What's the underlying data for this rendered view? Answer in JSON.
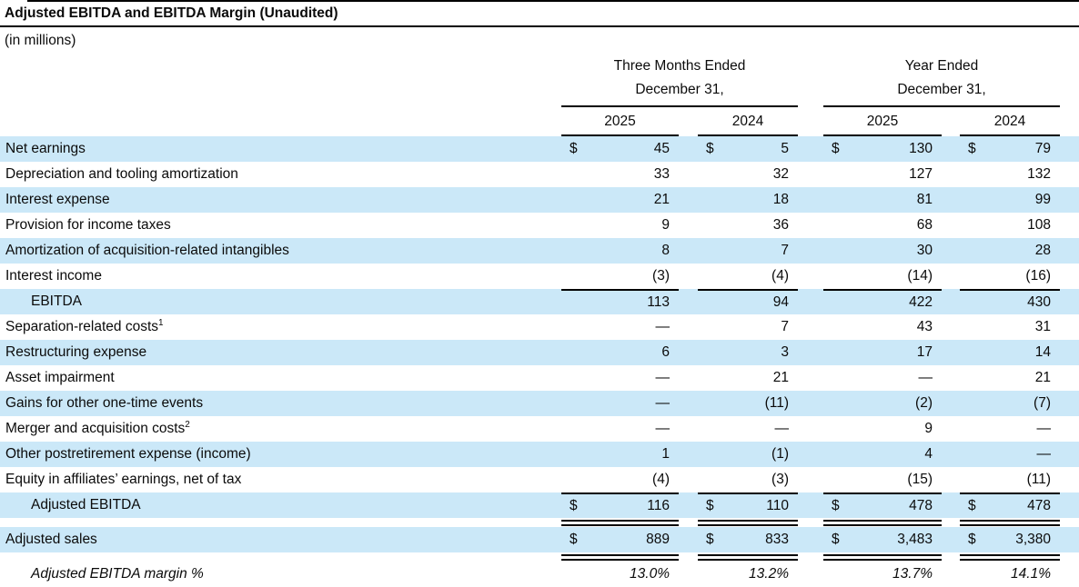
{
  "title": "Adjusted EBITDA and EBITDA Margin (Unaudited)",
  "subtitle": "(in millions)",
  "colors": {
    "stripe": "#cbe8f8",
    "rule": "#000000",
    "text": "#0b0b0b"
  },
  "table": {
    "currency_symbol": "$",
    "col_groups": [
      {
        "line1": "Three Months Ended",
        "line2": "December 31,",
        "years": [
          "2025",
          "2024"
        ]
      },
      {
        "line1": "Year Ended",
        "line2": "December 31,",
        "years": [
          "2025",
          "2024"
        ]
      }
    ],
    "rows": [
      {
        "label": "Net earnings",
        "shaded": true,
        "dollar": true,
        "values": [
          "45",
          "5",
          "130",
          "79"
        ]
      },
      {
        "label": "Depreciation and tooling amortization",
        "values": [
          "33",
          "32",
          "127",
          "132"
        ]
      },
      {
        "label": "Interest expense",
        "shaded": true,
        "values": [
          "21",
          "18",
          "81",
          "99"
        ]
      },
      {
        "label": "Provision for income taxes",
        "values": [
          "9",
          "36",
          "68",
          "108"
        ]
      },
      {
        "label": "Amortization of acquisition-related intangibles",
        "shaded": true,
        "values": [
          "8",
          "7",
          "30",
          "28"
        ]
      },
      {
        "label": "Interest income",
        "values": [
          "(3)",
          "(4)",
          "(14)",
          "(16)"
        ]
      },
      {
        "label": "EBITDA",
        "indent": true,
        "shaded": true,
        "topline": true,
        "values": [
          "113",
          "94",
          "422",
          "430"
        ]
      },
      {
        "label": "Separation-related costs",
        "sup": "1",
        "values": [
          "—",
          "7",
          "43",
          "31"
        ]
      },
      {
        "label": "Restructuring expense",
        "shaded": true,
        "values": [
          "6",
          "3",
          "17",
          "14"
        ]
      },
      {
        "label": "Asset impairment",
        "values": [
          "—",
          "21",
          "—",
          "21"
        ]
      },
      {
        "label": "Gains for other one-time events",
        "shaded": true,
        "values": [
          "—",
          "(11)",
          "(2)",
          "(7)"
        ]
      },
      {
        "label": "Merger and acquisition costs",
        "sup": "2",
        "values": [
          "—",
          "—",
          "9",
          "—"
        ]
      },
      {
        "label": "Other postretirement expense (income)",
        "shaded": true,
        "values": [
          "1",
          "(1)",
          "4",
          "—"
        ]
      },
      {
        "label": "Equity in affiliates’ earnings, net of tax",
        "values": [
          "(4)",
          "(3)",
          "(15)",
          "(11)"
        ]
      },
      {
        "label": "Adjusted EBITDA",
        "indent": true,
        "shaded": true,
        "dollar": true,
        "topline": true,
        "rule_below": "double",
        "values": [
          "116",
          "110",
          "478",
          "478"
        ]
      },
      {
        "label": "Adjusted sales",
        "shaded": true,
        "dollar": true,
        "rule_below": "double",
        "values": [
          "889",
          "833",
          "3,483",
          "3,380"
        ]
      },
      {
        "label": "Adjusted EBITDA margin %",
        "indent": true,
        "italic": true,
        "values": [
          "13.0%",
          "13.2%",
          "13.7%",
          "14.1%"
        ]
      }
    ]
  }
}
